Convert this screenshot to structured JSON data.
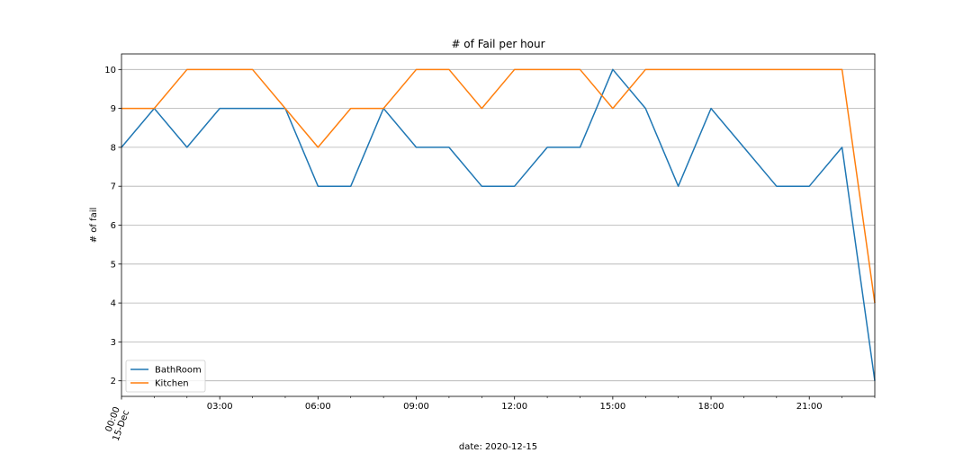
{
  "chart_data": {
    "type": "line",
    "title": "# of Fail per hour",
    "xlabel": "date: 2020-12-15",
    "ylabel": "# of fail",
    "x": [
      0,
      1,
      2,
      3,
      4,
      5,
      6,
      7,
      8,
      9,
      10,
      11,
      12,
      13,
      14,
      15,
      16,
      17,
      18,
      19,
      20,
      21,
      22,
      23
    ],
    "xlim": [
      0,
      23
    ],
    "ylim": [
      1.6,
      10.4
    ],
    "y_ticks": [
      2,
      3,
      4,
      5,
      6,
      7,
      8,
      9,
      10
    ],
    "x_tick_positions": [
      0,
      3,
      6,
      9,
      12,
      15,
      18,
      21
    ],
    "x_tick_labels": [
      "00:00",
      "03:00",
      "06:00",
      "09:00",
      "12:00",
      "15:00",
      "18:00",
      "21:00"
    ],
    "x_first_tick_sublabel": "15-Dec",
    "grid": "horizontal",
    "legend_position": "lower-left",
    "series": [
      {
        "name": "BathRoom",
        "color": "#1f77b4",
        "values": [
          8,
          9,
          8,
          9,
          9,
          9,
          7,
          7,
          9,
          8,
          8,
          7,
          7,
          8,
          8,
          10,
          9,
          7,
          9,
          8,
          7,
          7,
          8,
          2
        ]
      },
      {
        "name": "Kitchen",
        "color": "#ff7f0e",
        "values": [
          9,
          9,
          10,
          10,
          10,
          9,
          8,
          9,
          9,
          10,
          10,
          9,
          10,
          10,
          10,
          9,
          10,
          10,
          10,
          10,
          10,
          10,
          10,
          4
        ]
      }
    ]
  }
}
